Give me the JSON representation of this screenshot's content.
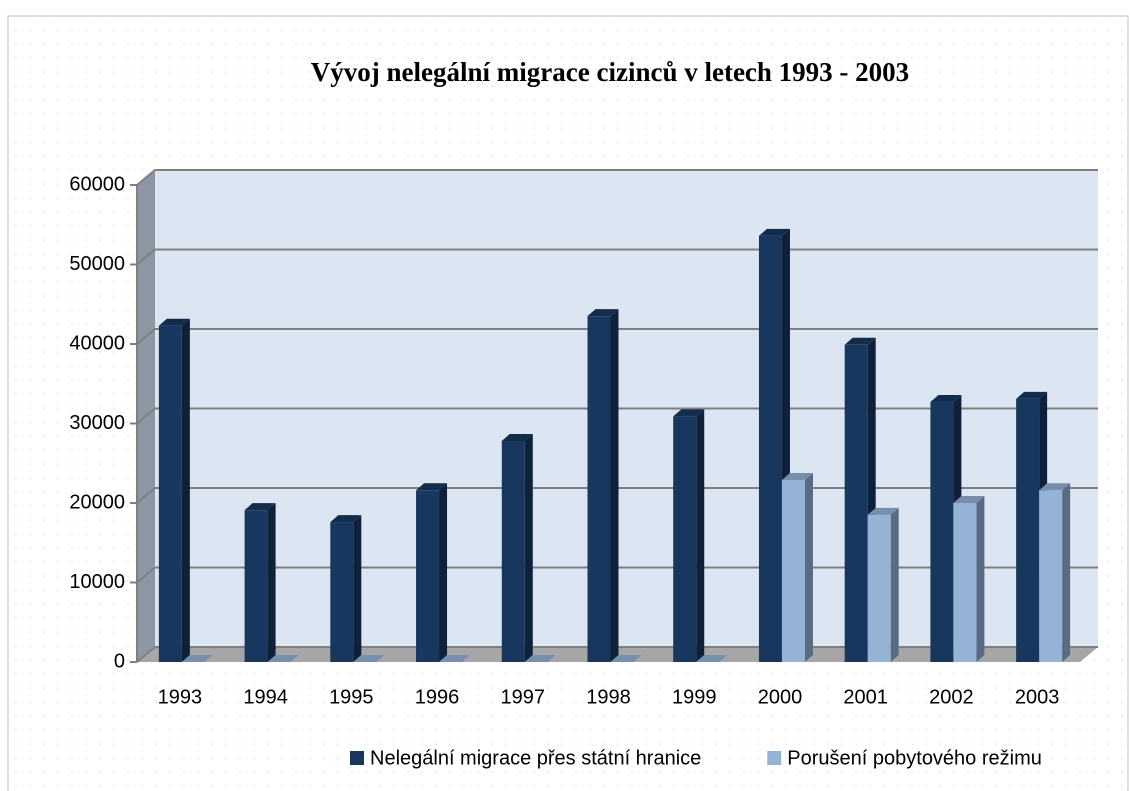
{
  "chart_data": {
    "type": "bar3d",
    "title": "Vývoj nelegální migrace cizinců v letech 1993 - 2003",
    "categories": [
      "1993",
      "1994",
      "1995",
      "1996",
      "1997",
      "1998",
      "1999",
      "2000",
      "2001",
      "2002",
      "2003"
    ],
    "series": [
      {
        "name": "Nelegální migrace přes státní hranice",
        "color": "#17375e",
        "values": [
          42300,
          19100,
          17600,
          21600,
          27800,
          43500,
          30900,
          53600,
          39900,
          32700,
          33100
        ]
      },
      {
        "name": "Porušení pobytového režimu",
        "color": "#95b3d7",
        "values": [
          0,
          0,
          0,
          0,
          0,
          0,
          0,
          22900,
          18500,
          20000,
          21600
        ]
      }
    ],
    "ylim": [
      0,
      60000
    ],
    "yticks": [
      0,
      10000,
      20000,
      30000,
      40000,
      50000,
      60000
    ],
    "grid": true,
    "legend": "bottom"
  }
}
